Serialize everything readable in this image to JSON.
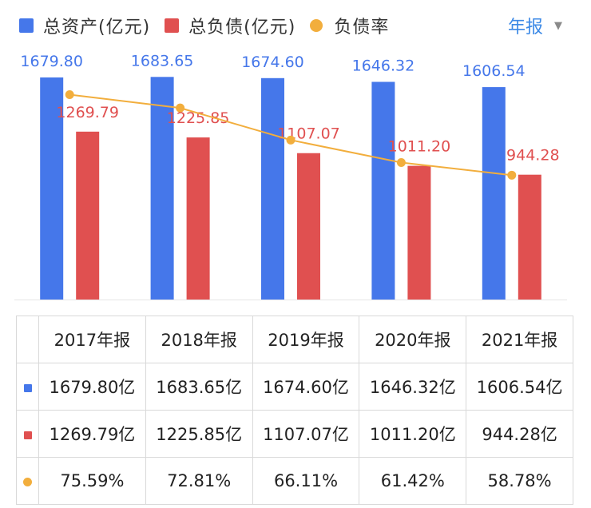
{
  "legend": {
    "assets": "总资产(亿元)",
    "liabilities": "总负债(亿元)",
    "ratio": "负债率"
  },
  "period_selector": {
    "label": "年报",
    "caret": "▼"
  },
  "colors": {
    "assets": "#4577ea",
    "liabilities": "#e05050",
    "ratio": "#f2ae3d",
    "grid": "#e6e6e6"
  },
  "chart_data": {
    "type": "bar",
    "categories": [
      "2017年报",
      "2018年报",
      "2019年报",
      "2020年报",
      "2021年报"
    ],
    "series": [
      {
        "name": "总资产(亿元)",
        "kind": "bar",
        "values": [
          1679.8,
          1683.65,
          1674.6,
          1646.32,
          1606.54
        ],
        "labels": [
          "1679.80",
          "1683.65",
          "1674.60",
          "1646.32",
          "1606.54"
        ]
      },
      {
        "name": "总负债(亿元)",
        "kind": "bar",
        "values": [
          1269.79,
          1225.85,
          1107.07,
          1011.2,
          944.28
        ],
        "labels": [
          "1269.79",
          "1225.85",
          "1107.07",
          "1011.20",
          "944.28"
        ]
      },
      {
        "name": "负债率",
        "kind": "line",
        "axis": "secondary",
        "values": [
          75.59,
          72.81,
          66.11,
          61.42,
          58.78
        ],
        "unit": "%"
      }
    ],
    "ylim": [
      0,
      1700
    ],
    "y2lim": [
      30,
      80
    ],
    "title": "",
    "xlabel": "",
    "ylabel": ""
  },
  "table": {
    "header": [
      "2017年报",
      "2018年报",
      "2019年报",
      "2020年报",
      "2021年报"
    ],
    "rows": [
      {
        "key": "assets",
        "cells": [
          "1679.80亿",
          "1683.65亿",
          "1674.60亿",
          "1646.32亿",
          "1606.54亿"
        ]
      },
      {
        "key": "liabilities",
        "cells": [
          "1269.79亿",
          "1225.85亿",
          "1107.07亿",
          "1011.20亿",
          "944.28亿"
        ]
      },
      {
        "key": "ratio",
        "cells": [
          "75.59%",
          "72.81%",
          "66.11%",
          "61.42%",
          "58.78%"
        ]
      }
    ]
  }
}
